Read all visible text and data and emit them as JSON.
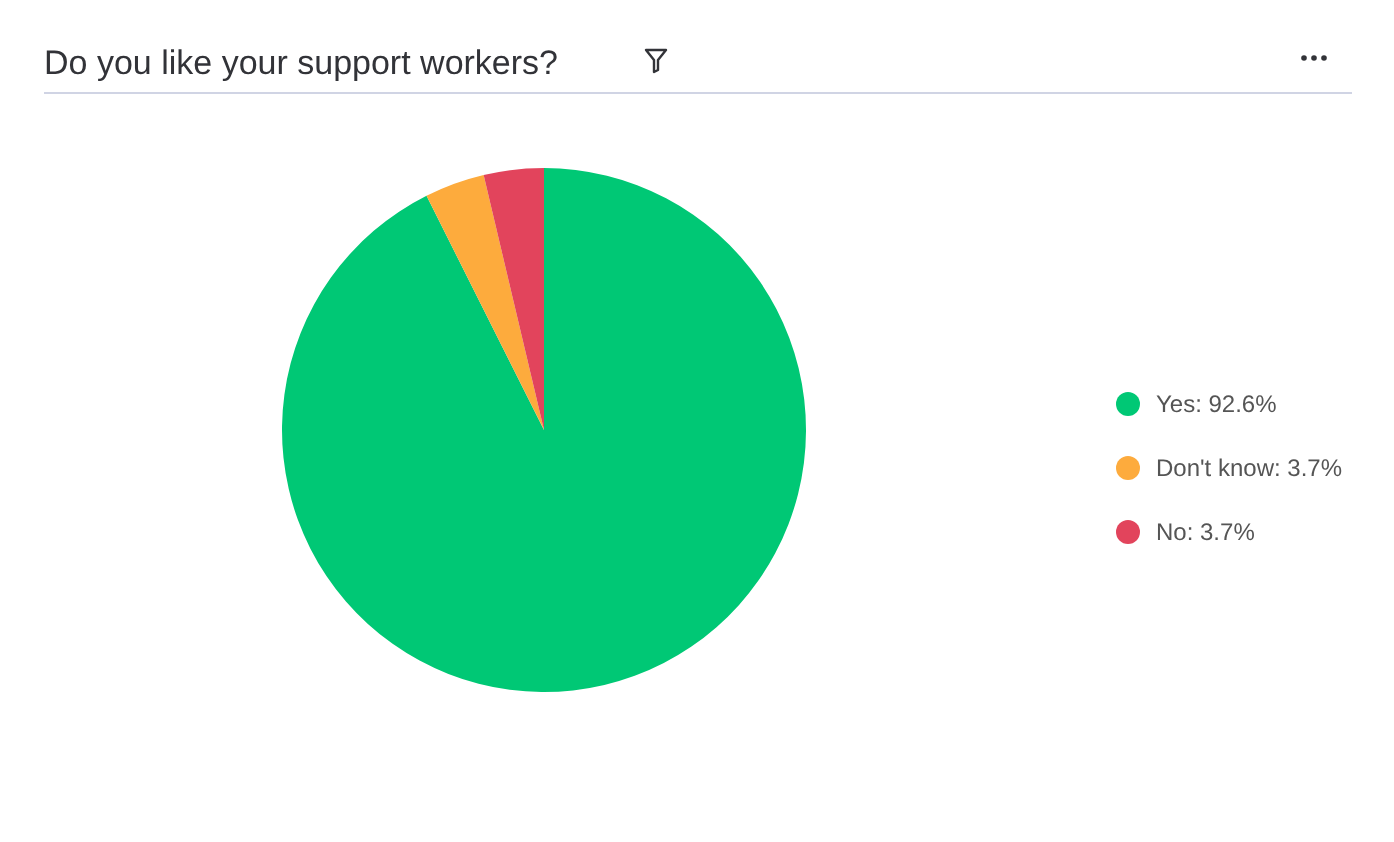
{
  "chart_data": {
    "type": "pie",
    "title": "Do you like your support workers?",
    "categories": [
      "Yes: 92.6%",
      "Don't know: 3.7%",
      "No: 3.7%"
    ],
    "values": [
      92.6,
      3.7,
      3.7
    ],
    "colors": [
      "#00c875",
      "#fdab3d",
      "#e2445c"
    ],
    "legend": "right"
  }
}
